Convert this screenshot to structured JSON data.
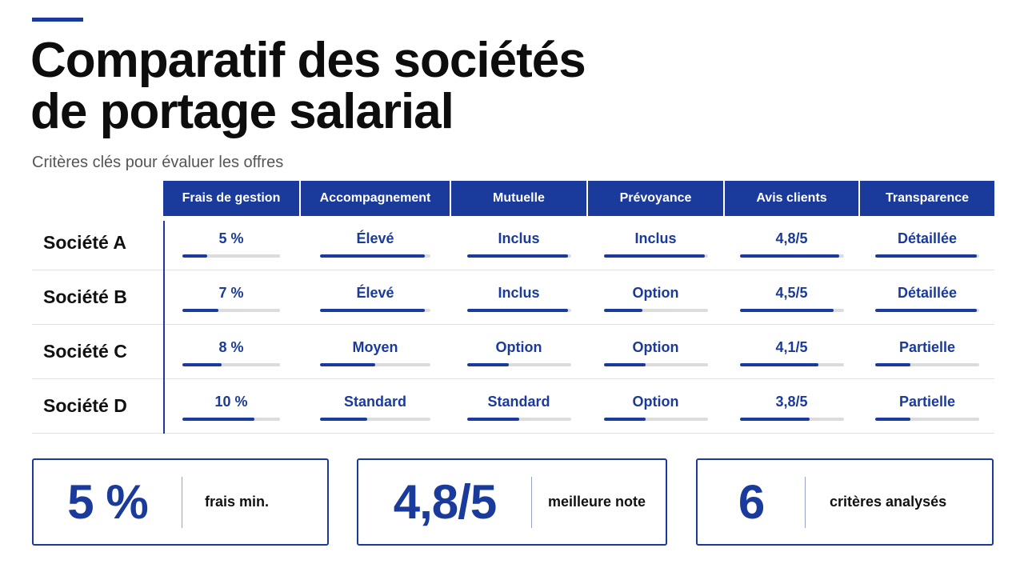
{
  "header": {
    "title_line1": "Comparatif des sociétés",
    "title_line2": "de portage salarial",
    "subtitle": "Critères clés pour évaluer les offres"
  },
  "colors": {
    "accent": "#1a3a9c",
    "track": "#dcdcdc",
    "text": "#111111"
  },
  "table": {
    "columns": [
      "Frais de gestion",
      "Accompagnement",
      "Mutuelle",
      "Prévoyance",
      "Avis clients",
      "Transparence"
    ],
    "rows": [
      {
        "label": "Société A",
        "cells": [
          {
            "value": "5 %",
            "level": 0.25
          },
          {
            "value": "Élevé",
            "level": 0.95
          },
          {
            "value": "Inclus",
            "level": 0.97
          },
          {
            "value": "Inclus",
            "level": 0.97
          },
          {
            "value": "4,8/5",
            "level": 0.96
          },
          {
            "value": "Détaillée",
            "level": 0.98
          }
        ]
      },
      {
        "label": "Société B",
        "cells": [
          {
            "value": "7 %",
            "level": 0.37
          },
          {
            "value": "Élevé",
            "level": 0.95
          },
          {
            "value": "Inclus",
            "level": 0.97
          },
          {
            "value": "Option",
            "level": 0.37
          },
          {
            "value": "4,5/5",
            "level": 0.9
          },
          {
            "value": "Détaillée",
            "level": 0.98
          }
        ]
      },
      {
        "label": "Société C",
        "cells": [
          {
            "value": "8 %",
            "level": 0.4
          },
          {
            "value": "Moyen",
            "level": 0.5
          },
          {
            "value": "Option",
            "level": 0.4
          },
          {
            "value": "Option",
            "level": 0.4
          },
          {
            "value": "4,1/5",
            "level": 0.76
          },
          {
            "value": "Partielle",
            "level": 0.34
          }
        ]
      },
      {
        "label": "Société D",
        "cells": [
          {
            "value": "10 %",
            "level": 0.74
          },
          {
            "value": "Standard",
            "level": 0.43
          },
          {
            "value": "Standard",
            "level": 0.5
          },
          {
            "value": "Option",
            "level": 0.4
          },
          {
            "value": "3,8/5",
            "level": 0.67
          },
          {
            "value": "Partielle",
            "level": 0.34
          }
        ]
      }
    ]
  },
  "cards": [
    {
      "value": "5 %",
      "label": "frais min."
    },
    {
      "value": "4,8/5",
      "label": "meilleure note"
    },
    {
      "value": "6",
      "label": "critères analysés"
    }
  ]
}
